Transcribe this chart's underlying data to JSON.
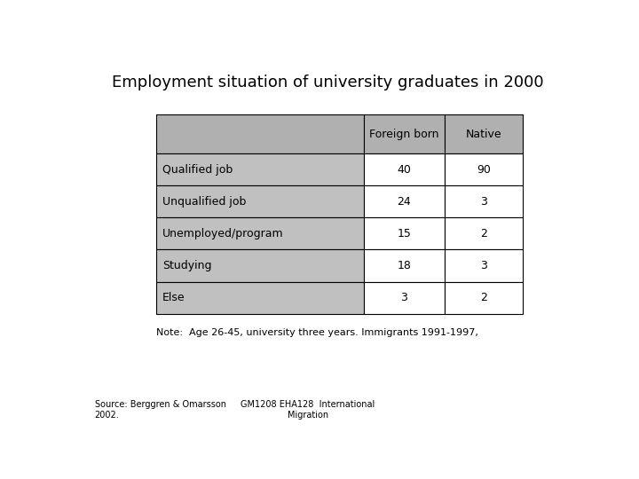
{
  "title": "Employment situation of university graduates in 2000",
  "col_headers": [
    "Foreign born",
    "Native"
  ],
  "row_labels": [
    "Qualified job",
    "Unqualified job",
    "Unemployed/program",
    "Studying",
    "Else"
  ],
  "values": [
    [
      40,
      90
    ],
    [
      24,
      3
    ],
    [
      15,
      2
    ],
    [
      18,
      3
    ],
    [
      3,
      2
    ]
  ],
  "note": "Note:  Age 26-45, university three years. Immigrants 1991-1997,",
  "source_left": "Source: Berggren & Omarsson\n2002.",
  "source_right": "GM1208 EHA128  International\nMigration",
  "header_bg": "#b0b0b0",
  "row_label_bg": "#c0c0c0",
  "cell_bg": "#ffffff",
  "border_color": "#000000",
  "title_fontsize": 13,
  "header_fontsize": 9,
  "cell_fontsize": 9,
  "note_fontsize": 8,
  "source_fontsize": 7
}
